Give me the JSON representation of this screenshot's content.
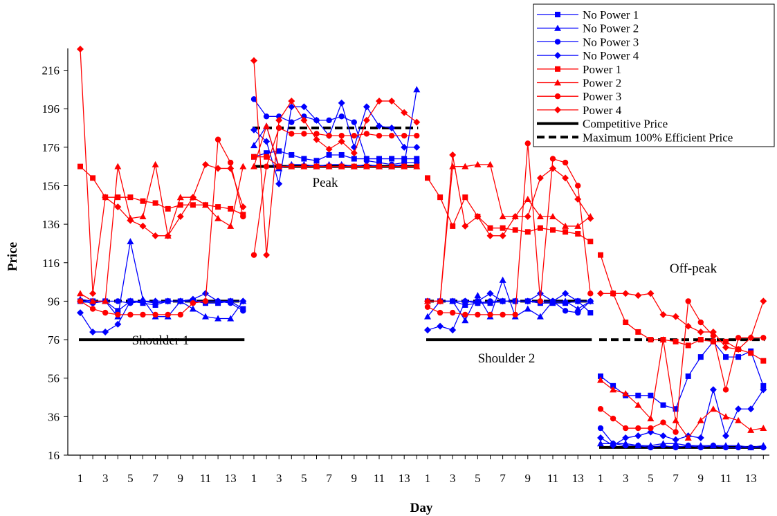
{
  "chart_data": {
    "type": "line",
    "title": "",
    "xlabel": "Day",
    "ylabel": "Price",
    "ylim": [
      16,
      226
    ],
    "yticks": [
      16,
      36,
      56,
      76,
      96,
      116,
      136,
      156,
      176,
      196,
      216
    ],
    "grid": false,
    "legend_position": "top-right",
    "x": [
      1,
      2,
      3,
      4,
      5,
      6,
      7,
      8,
      9,
      10,
      11,
      12,
      13,
      14
    ],
    "xtick_labels": [
      "1",
      "3",
      "5",
      "7",
      "9",
      "11",
      "13"
    ],
    "panels": [
      {
        "name": "Shoulder 1"
      },
      {
        "name": "Peak"
      },
      {
        "name": "Shoulder 2"
      },
      {
        "name": "Off-peak"
      }
    ],
    "series": [
      {
        "name": "No Power 1",
        "color": "#0000ff",
        "marker": "square",
        "values": [
          [
            96,
            96,
            96,
            91,
            96,
            95,
            94,
            96,
            96,
            96,
            95,
            95,
            96,
            92
          ],
          [
            171,
            173,
            174,
            172,
            170,
            169,
            172,
            172,
            170,
            170,
            170,
            170,
            170,
            170
          ],
          [
            96,
            96,
            96,
            94,
            95,
            95,
            96,
            96,
            96,
            95,
            95,
            95,
            96,
            90
          ],
          [
            57,
            52,
            47,
            47,
            47,
            42,
            40,
            57,
            67,
            75,
            67,
            67,
            70,
            52
          ]
        ]
      },
      {
        "name": "No Power 2",
        "color": "#0000ff",
        "marker": "triangle",
        "values": [
          [
            97,
            96,
            96,
            88,
            127,
            97,
            88,
            88,
            96,
            92,
            88,
            87,
            87,
            96
          ],
          [
            177,
            187,
            165,
            167,
            167,
            166,
            167,
            167,
            166,
            167,
            166,
            166,
            167,
            206
          ],
          [
            88,
            96,
            96,
            86,
            99,
            88,
            107,
            88,
            92,
            88,
            96,
            96,
            92,
            96
          ],
          [
            22,
            22,
            22,
            21,
            21,
            22,
            22,
            21,
            21,
            21,
            21,
            21,
            20,
            21
          ]
        ]
      },
      {
        "name": "No Power 3",
        "color": "#0000ff",
        "marker": "circle",
        "values": [
          [
            96,
            95,
            96,
            96,
            95,
            96,
            95,
            96,
            96,
            96,
            96,
            96,
            95,
            91
          ],
          [
            201,
            192,
            192,
            189,
            192,
            190,
            190,
            192,
            189,
            169,
            168,
            167,
            168,
            168
          ],
          [
            96,
            96,
            96,
            96,
            95,
            96,
            96,
            96,
            96,
            96,
            96,
            91,
            90,
            96
          ],
          [
            30,
            22,
            21,
            21,
            20,
            21,
            20,
            21,
            20,
            21,
            20,
            20,
            20,
            20
          ]
        ]
      },
      {
        "name": "No Power 4",
        "color": "#0000ff",
        "marker": "diamond",
        "values": [
          [
            90,
            80,
            80,
            84,
            96,
            96,
            96,
            96,
            96,
            97,
            100,
            96,
            96,
            96
          ],
          [
            185,
            179,
            157,
            197,
            197,
            190,
            182,
            199,
            176,
            197,
            187,
            186,
            176,
            176
          ],
          [
            81,
            83,
            81,
            96,
            96,
            100,
            96,
            96,
            96,
            100,
            96,
            100,
            96,
            96
          ],
          [
            25,
            21,
            25,
            26,
            28,
            26,
            24,
            26,
            25,
            50,
            26,
            40,
            40,
            50
          ]
        ]
      },
      {
        "name": "Power 1",
        "color": "#ff0000",
        "marker": "square",
        "values": [
          [
            166,
            160,
            150,
            150,
            150,
            148,
            147,
            144,
            146,
            146,
            146,
            145,
            144,
            141
          ],
          [
            171,
            171,
            166,
            166,
            166,
            166,
            166,
            166,
            166,
            166,
            166,
            166,
            166,
            166
          ],
          [
            160,
            150,
            135,
            150,
            140,
            134,
            134,
            133,
            132,
            134,
            133,
            132,
            131,
            127
          ],
          [
            120,
            100,
            85,
            80,
            76,
            76,
            75,
            73,
            76,
            75,
            75,
            71,
            69,
            65
          ]
        ]
      },
      {
        "name": "Power 2",
        "color": "#ff0000",
        "marker": "triangle",
        "values": [
          [
            100,
            96,
            96,
            166,
            139,
            140,
            167,
            130,
            150,
            150,
            146,
            139,
            135,
            166
          ],
          [
            166,
            187,
            166,
            166,
            166,
            166,
            166,
            166,
            166,
            166,
            166,
            166,
            166,
            166
          ],
          [
            96,
            96,
            166,
            166,
            167,
            167,
            140,
            140,
            149,
            140,
            140,
            135,
            135,
            140
          ],
          [
            55,
            50,
            48,
            42,
            35,
            76,
            34,
            25,
            34,
            40,
            36,
            34,
            29,
            30
          ]
        ]
      },
      {
        "name": "Power 3",
        "color": "#ff0000",
        "marker": "circle",
        "values": [
          [
            96,
            92,
            90,
            89,
            89,
            89,
            89,
            89,
            89,
            95,
            96,
            180,
            168,
            140
          ],
          [
            120,
            166,
            186,
            183,
            183,
            183,
            182,
            182,
            182,
            183,
            182,
            182,
            182,
            182
          ],
          [
            93,
            90,
            90,
            89,
            89,
            89,
            89,
            89,
            178,
            96,
            170,
            168,
            156,
            100
          ],
          [
            40,
            35,
            30,
            30,
            30,
            33,
            28,
            96,
            85,
            78,
            50,
            77,
            77,
            77
          ]
        ]
      },
      {
        "name": "Power 4",
        "color": "#ff0000",
        "marker": "diamond",
        "values": [
          [
            227,
            100,
            150,
            145,
            138,
            135,
            130,
            130,
            140,
            150,
            167,
            165,
            165,
            145
          ],
          [
            221,
            120,
            190,
            200,
            190,
            180,
            175,
            179,
            173,
            190,
            200,
            200,
            194,
            189
          ],
          [
            96,
            96,
            172,
            135,
            140,
            130,
            130,
            140,
            140,
            160,
            165,
            160,
            149,
            139
          ],
          [
            100,
            100,
            100,
            99,
            100,
            89,
            88,
            83,
            80,
            80,
            72,
            71,
            77,
            96
          ]
        ]
      },
      {
        "name": "Competitive Price",
        "color": "#000000",
        "line": "solid",
        "values": [
          [
            76,
            76
          ],
          [
            166,
            166
          ],
          [
            76,
            76
          ],
          [
            20,
            20
          ]
        ]
      },
      {
        "name": "Maximum 100% Efficient Price",
        "color": "#000000",
        "line": "dashed",
        "values": [
          [
            96,
            96
          ],
          [
            186,
            186
          ],
          [
            96,
            96
          ],
          [
            76,
            76
          ]
        ]
      }
    ]
  }
}
